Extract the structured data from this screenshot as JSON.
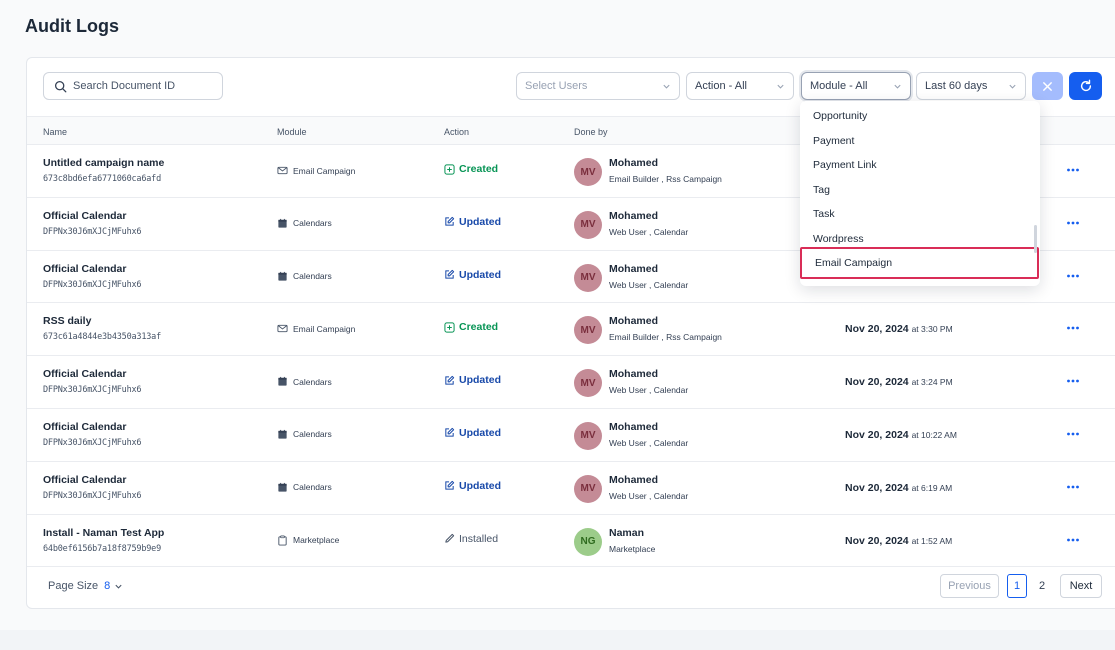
{
  "page": {
    "title": "Audit Logs"
  },
  "toolbar": {
    "search_placeholder": "Search Document ID",
    "users_placeholder": "Select Users",
    "action_filter": "Action - All",
    "module_filter": "Module - All",
    "date_filter": "Last 60 days"
  },
  "table": {
    "headers": {
      "name": "Name",
      "module": "Module",
      "action": "Action",
      "done_by": "Done by"
    },
    "rows": [
      {
        "name": "Untitled campaign name",
        "id": "673c8bd6efa6771060ca6afd",
        "module": "Email Campaign",
        "module_icon": "mail-icon",
        "action": "Created",
        "action_type": "created",
        "initials": "MV",
        "user": "Mohamed",
        "roles": "Email Builder , Rss Campaign",
        "date": "",
        "time": ""
      },
      {
        "name": "Official Calendar",
        "id": "DFPNx30J6mXJCjMFuhx6",
        "module": "Calendars",
        "module_icon": "calendar-icon",
        "action": "Updated",
        "action_type": "updated",
        "initials": "MV",
        "user": "Mohamed",
        "roles": "Web User , Calendar",
        "date": "",
        "time": ""
      },
      {
        "name": "Official Calendar",
        "id": "DFPNx30J6mXJCjMFuhx6",
        "module": "Calendars",
        "module_icon": "calendar-icon",
        "action": "Updated",
        "action_type": "updated",
        "initials": "MV",
        "user": "Mohamed",
        "roles": "Web User , Calendar",
        "date": "",
        "time": ""
      },
      {
        "name": "RSS daily",
        "id": "673c61a4844e3b4350a313af",
        "module": "Email Campaign",
        "module_icon": "mail-icon",
        "action": "Created",
        "action_type": "created",
        "initials": "MV",
        "user": "Mohamed",
        "roles": "Email Builder , Rss Campaign",
        "date": "Nov 20, 2024",
        "time": "at 3:30 PM"
      },
      {
        "name": "Official Calendar",
        "id": "DFPNx30J6mXJCjMFuhx6",
        "module": "Calendars",
        "module_icon": "calendar-icon",
        "action": "Updated",
        "action_type": "updated",
        "initials": "MV",
        "user": "Mohamed",
        "roles": "Web User , Calendar",
        "date": "Nov 20, 2024",
        "time": "at 3:24 PM"
      },
      {
        "name": "Official Calendar",
        "id": "DFPNx30J6mXJCjMFuhx6",
        "module": "Calendars",
        "module_icon": "calendar-icon",
        "action": "Updated",
        "action_type": "updated",
        "initials": "MV",
        "user": "Mohamed",
        "roles": "Web User , Calendar",
        "date": "Nov 20, 2024",
        "time": "at 10:22 AM"
      },
      {
        "name": "Official Calendar",
        "id": "DFPNx30J6mXJCjMFuhx6",
        "module": "Calendars",
        "module_icon": "calendar-icon",
        "action": "Updated",
        "action_type": "updated",
        "initials": "MV",
        "user": "Mohamed",
        "roles": "Web User , Calendar",
        "date": "Nov 20, 2024",
        "time": "at 6:19 AM"
      },
      {
        "name": "Install - Naman Test App",
        "id": "64b0ef6156b7a18f8759b9e9",
        "module": "Marketplace",
        "module_icon": "clipboard-icon",
        "action": "Installed",
        "action_type": "installed",
        "initials": "NG",
        "user": "Naman",
        "roles": "Marketplace",
        "date": "Nov 20, 2024",
        "time": "at 1:52 AM"
      }
    ]
  },
  "module_dropdown": {
    "options": [
      "Opportunity",
      "Payment",
      "Payment Link",
      "Tag",
      "Task",
      "Wordpress",
      "Email Campaign"
    ],
    "highlighted": "Email Campaign"
  },
  "footer": {
    "page_size_label": "Page Size",
    "page_size_value": "8",
    "previous": "Previous",
    "pages": [
      "1",
      "2"
    ],
    "current_page": "1",
    "next": "Next"
  },
  "colors": {
    "avatar_mv_bg": "#c48b96",
    "avatar_mv_fg": "#7a2e3d",
    "avatar_ng_bg": "#9ccc8a",
    "avatar_ng_fg": "#2f6b1f",
    "primary": "#155eef",
    "highlight_border": "#d92d57"
  }
}
